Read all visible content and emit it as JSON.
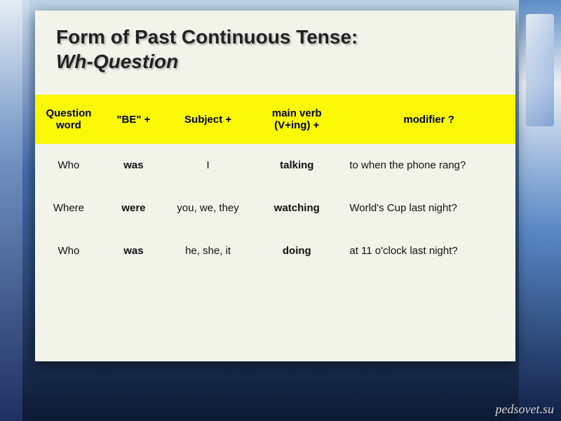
{
  "title": {
    "line1": "Form of Past Continuous Tense:",
    "line2": "Wh-Question"
  },
  "table": {
    "headers": {
      "c1": "Question word",
      "c2": "\"BE\"  +",
      "c3": "Subject +",
      "c4": "main verb (V+ing) +",
      "c5": "modifier ?"
    },
    "rows": [
      {
        "qword": "Who",
        "be": "was",
        "subject": "I",
        "verb": "talking",
        "modifier": "to when the phone rang?"
      },
      {
        "qword": "Where",
        "be": "were",
        "subject": "you, we, they",
        "verb": "watching",
        "modifier": "World's Cup last night?"
      },
      {
        "qword": "Who",
        "be": "was",
        "subject": "he, she, it",
        "verb": "doing",
        "modifier": "at 11 o'clock last night?"
      }
    ]
  },
  "watermark": "pedsovet.su",
  "colors": {
    "header_bg": "#faf805",
    "slide_bg": "#f2f4ea"
  }
}
